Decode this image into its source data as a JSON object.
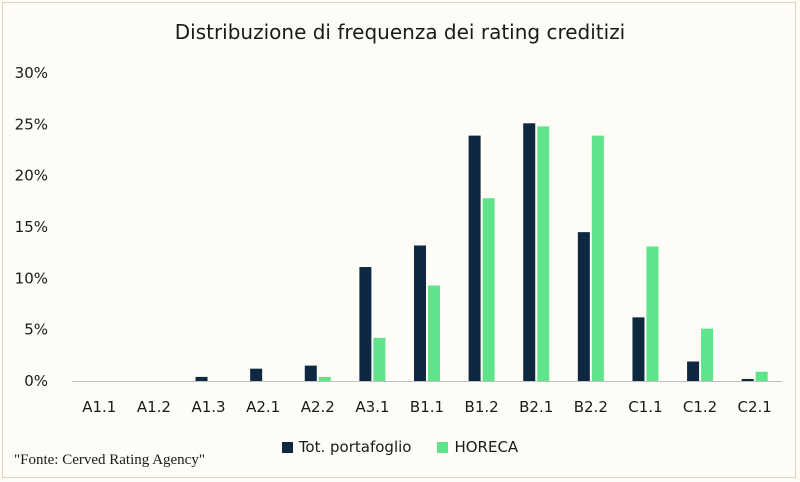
{
  "chart_data": {
    "type": "bar",
    "title": "Distribuzione di frequenza dei rating creditizi",
    "categories": [
      "A1.1",
      "A1.2",
      "A1.3",
      "A2.1",
      "A2.2",
      "A3.1",
      "B1.1",
      "B1.2",
      "B2.1",
      "B2.2",
      "C1.1",
      "C1.2",
      "C2.1"
    ],
    "series": [
      {
        "name": "Tot. portafoglio",
        "color": "#0e2841",
        "values": [
          0,
          0,
          0.4,
          1.2,
          1.5,
          11.1,
          13.2,
          23.9,
          25.1,
          14.5,
          6.2,
          1.9,
          0.2
        ]
      },
      {
        "name": "HORECA",
        "color": "#5fe38b",
        "values": [
          0,
          0,
          0,
          0,
          0.4,
          4.2,
          9.3,
          17.8,
          24.8,
          23.9,
          13.1,
          5.1,
          0.9
        ]
      }
    ],
    "ylim": [
      0,
      30
    ],
    "yticks": [
      "0%",
      "5%",
      "10%",
      "15%",
      "20%",
      "25%",
      "30%"
    ],
    "ytick_values": [
      0,
      5,
      10,
      15,
      20,
      25,
      30
    ],
    "grid": false,
    "legend_position": "bottom"
  },
  "source_note": "\"Fonte: Cerved Rating Agency\""
}
